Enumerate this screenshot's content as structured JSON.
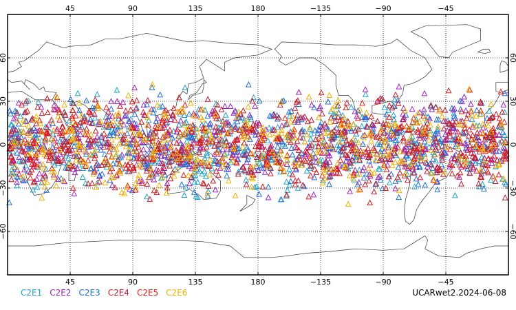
{
  "chart_data": {
    "type": "scatter",
    "projection": "cylindrical-equidistant",
    "center_longitude": 180,
    "lon_range": [
      0,
      360
    ],
    "lat_range": [
      -90,
      90
    ],
    "grid": true,
    "grid_style": "dotted",
    "marker": "open-triangle",
    "top_tick_labels": [
      "45",
      "90",
      "135",
      "180",
      "−135",
      "−90",
      "−45"
    ],
    "bottom_tick_labels": [
      "45",
      "90",
      "135",
      "180",
      "−135",
      "−90",
      "−45"
    ],
    "lat_tick_labels": [
      "60",
      "30",
      "0",
      "−30",
      "−60"
    ],
    "tick_lons": [
      45,
      90,
      135,
      180,
      225,
      270,
      315
    ],
    "tick_lats": [
      60,
      30,
      0,
      -30,
      -60
    ],
    "point_lat_range": [
      -45,
      45
    ],
    "points_per_series": 420,
    "legend_placement": "bottom-left",
    "series": [
      {
        "name": "C2E1",
        "color": "#1ca3c9"
      },
      {
        "name": "C2E2",
        "color": "#a020c0"
      },
      {
        "name": "C2E3",
        "color": "#1f6fd6"
      },
      {
        "name": "C2E4",
        "color": "#c0182a"
      },
      {
        "name": "C2E5",
        "color": "#e01818"
      },
      {
        "name": "C2E6",
        "color": "#f0b000"
      }
    ]
  },
  "caption": "UCARwet2.2024-06-08"
}
